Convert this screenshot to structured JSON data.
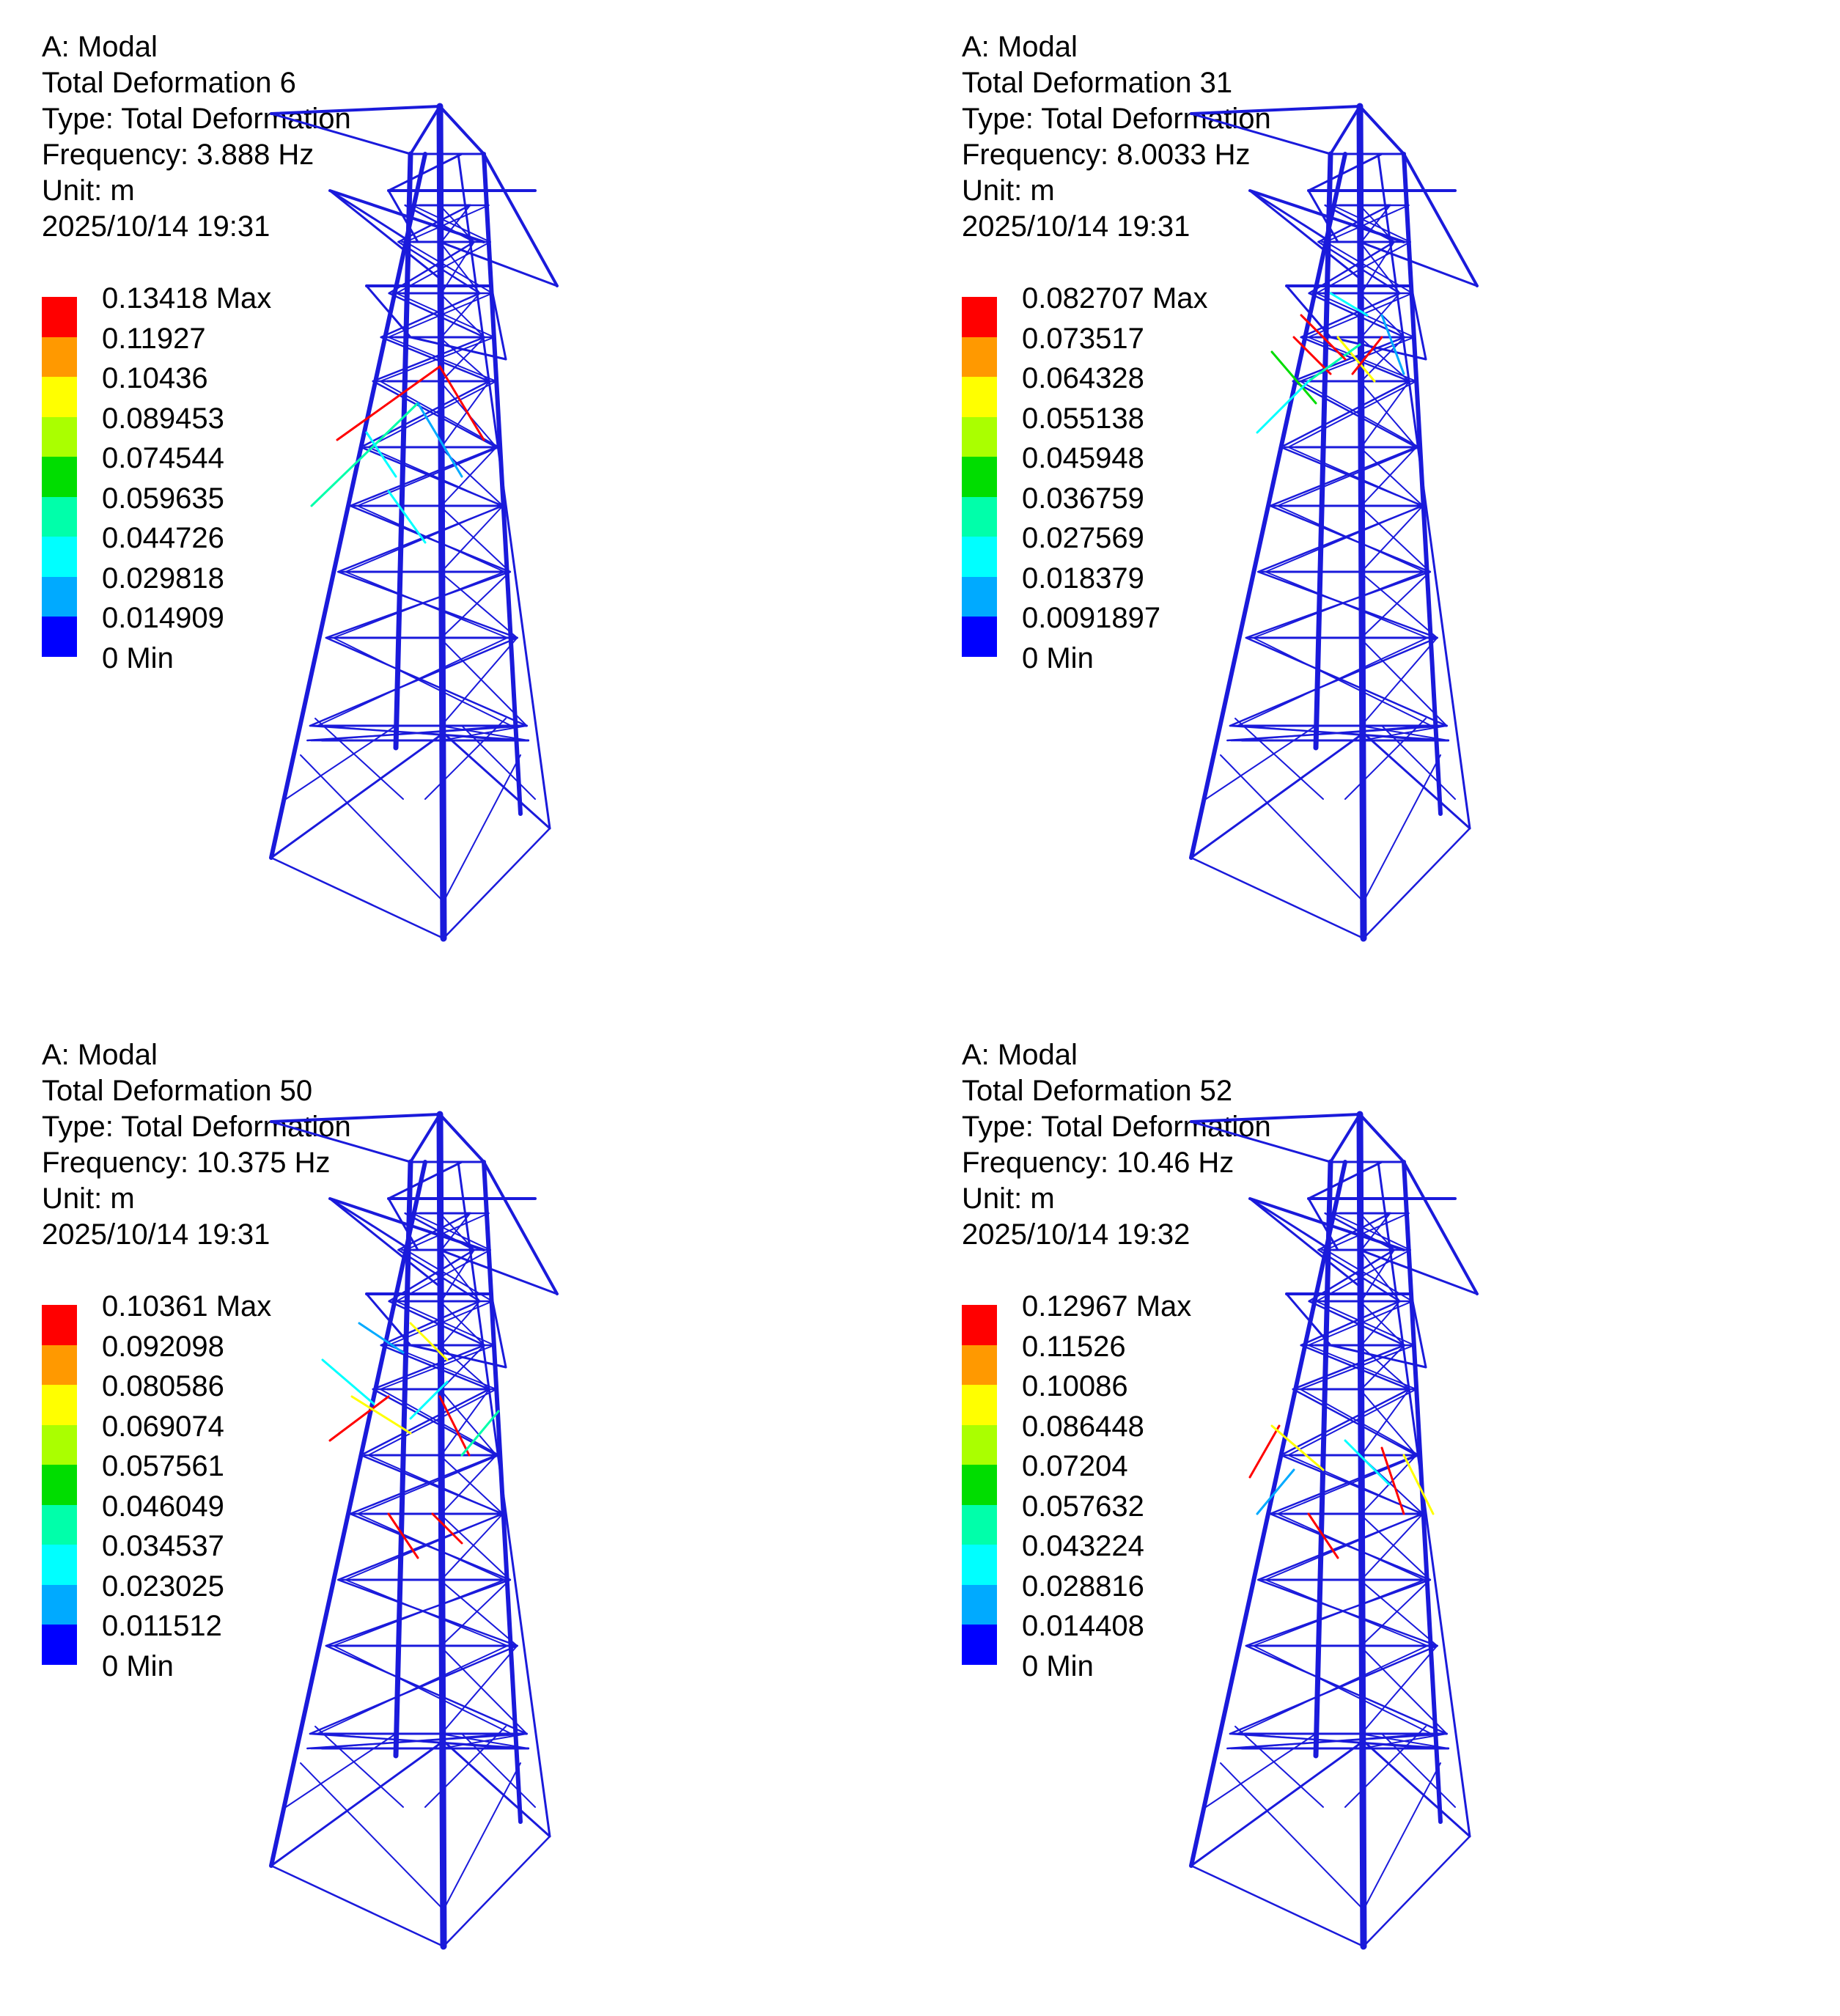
{
  "panels": [
    {
      "header": [
        "A: Modal",
        "Total Deformation 6",
        "Type: Total Deformation",
        "Frequency: 3.888 Hz",
        "Unit: m",
        "2025/10/14 19:31"
      ],
      "legend_labels": [
        "0.13418 Max",
        "0.11927",
        "0.10436",
        "0.089453",
        "0.074544",
        "0.059635",
        "0.044726",
        "0.029818",
        "0.014909",
        "0 Min"
      ]
    },
    {
      "header": [
        "A: Modal",
        "Total Deformation 31",
        "Type: Total Deformation",
        "Frequency: 8.0033 Hz",
        "Unit: m",
        "2025/10/14 19:31"
      ],
      "legend_labels": [
        "0.082707 Max",
        "0.073517",
        "0.064328",
        "0.055138",
        "0.045948",
        "0.036759",
        "0.027569",
        "0.018379",
        "0.0091897",
        "0 Min"
      ]
    },
    {
      "header": [
        "A: Modal",
        "Total Deformation 50",
        "Type: Total Deformation",
        "Frequency: 10.375 Hz",
        "Unit: m",
        "2025/10/14 19:31"
      ],
      "legend_labels": [
        "0.10361 Max",
        "0.092098",
        "0.080586",
        "0.069074",
        "0.057561",
        "0.046049",
        "0.034537",
        "0.023025",
        "0.011512",
        "0 Min"
      ]
    },
    {
      "header": [
        "A: Modal",
        "Total Deformation 52",
        "Type: Total Deformation",
        "Frequency: 10.46 Hz",
        "Unit: m",
        "2025/10/14 19:32"
      ],
      "legend_labels": [
        "0.12967 Max",
        "0.11526",
        "0.10086",
        "0.086448",
        "0.07204",
        "0.057632",
        "0.043224",
        "0.028816",
        "0.014408",
        "0 Min"
      ]
    }
  ],
  "legend_colors": [
    "#ff0000",
    "#ff9900",
    "#ffff00",
    "#aaff00",
    "#00dd00",
    "#00ffaa",
    "#00ffff",
    "#00aaff",
    "#0000ff"
  ],
  "tower_color": "#1a1adb",
  "hotspot_colors": [
    "#ff0000",
    "#ffff00",
    "#00ffaa",
    "#00ffff",
    "#00aaff",
    "#00dd00"
  ]
}
